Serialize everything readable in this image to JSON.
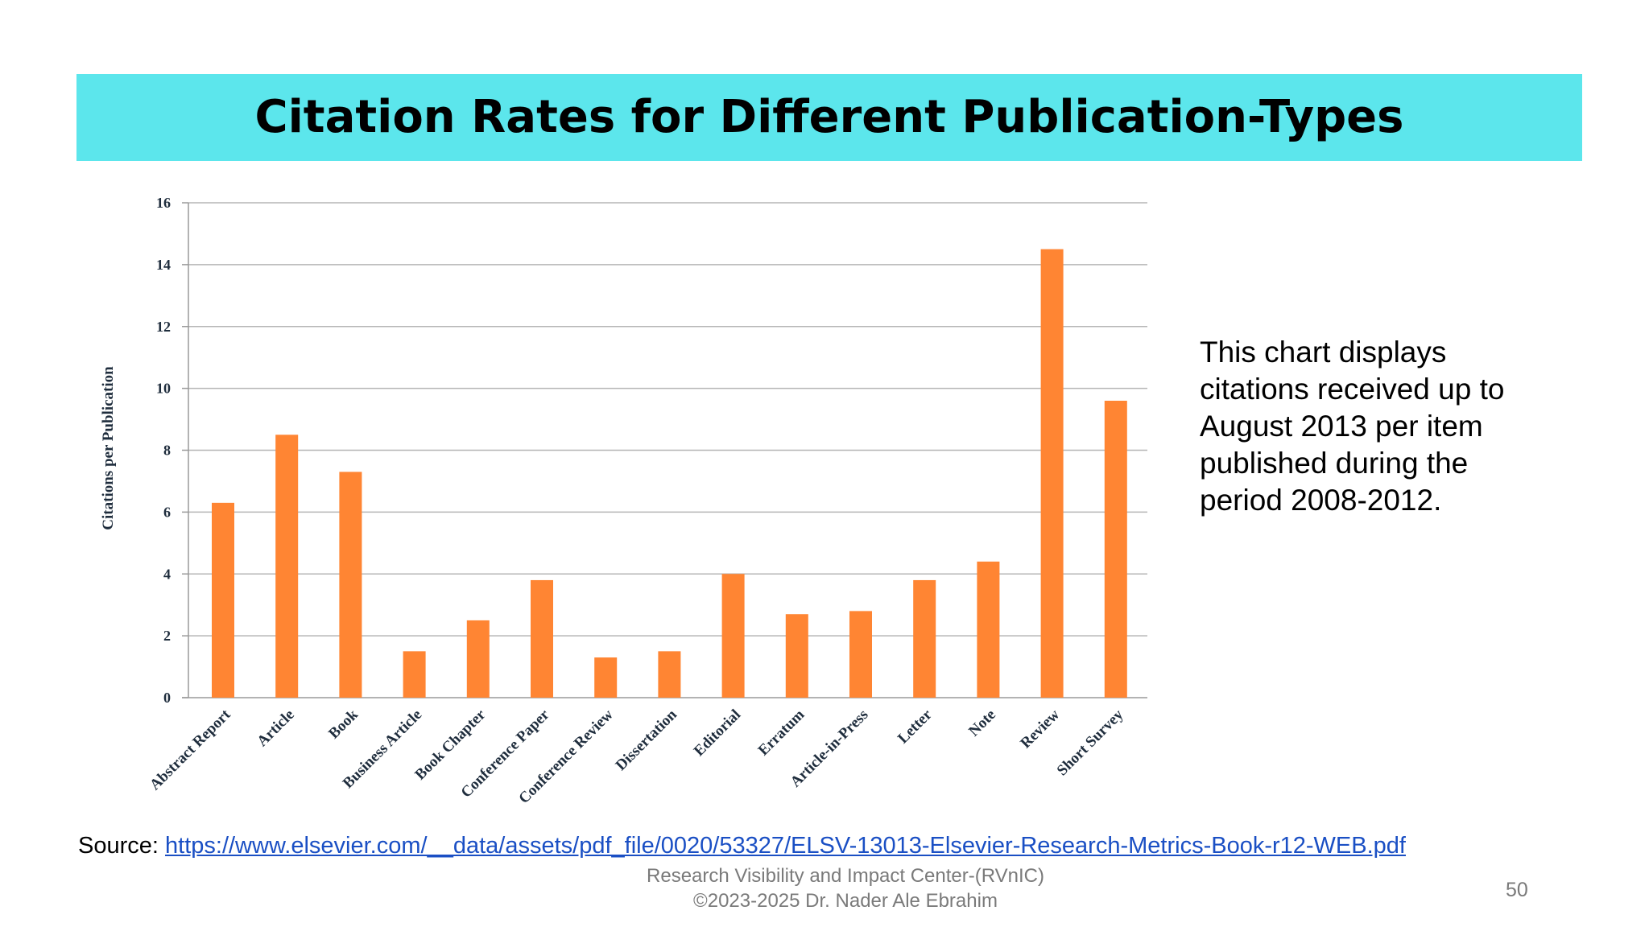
{
  "slide": {
    "title": "Citation Rates for Different Publication-Types",
    "description": "This chart displays citations received up to August 2013 per item published during the period 2008-2012.",
    "source_label": "Source:",
    "source_link": "https://www.elsevier.com/__data/assets/pdf_file/0020/53327/ELSV-13013-Elsevier-Research-Metrics-Book-r12-WEB.pdf",
    "footer_line1": "Research Visibility and Impact Center-(RVnIC)",
    "footer_line2": "©2023-2025 Dr. Nader Ale Ebrahim",
    "page_number": "50"
  },
  "colors": {
    "title_bar": "#5ce6ec",
    "bar": "#ff8533",
    "link": "#1a4fc4"
  },
  "chart_data": {
    "type": "bar",
    "categories": [
      "Abstract Report",
      "Article",
      "Book",
      "Business Article",
      "Book Chapter",
      "Conference Paper",
      "Conference Review",
      "Dissertation",
      "Editorial",
      "Erratum",
      "Article-in-Press",
      "Letter",
      "Note",
      "Review",
      "Short Survey"
    ],
    "values": [
      6.3,
      8.5,
      7.3,
      1.5,
      2.5,
      3.8,
      1.3,
      1.5,
      4.0,
      2.7,
      2.8,
      3.8,
      4.4,
      14.5,
      9.6
    ],
    "ylabel": "Citations per Publication",
    "ylim": [
      0,
      16
    ],
    "yticks": [
      0,
      2,
      4,
      6,
      8,
      10,
      12,
      14,
      16
    ],
    "grid": true
  }
}
